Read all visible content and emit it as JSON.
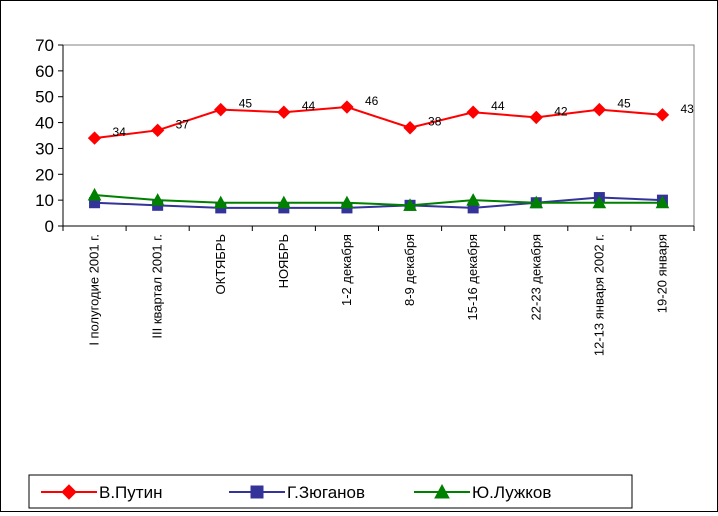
{
  "chart_data": {
    "type": "line",
    "categories": [
      "I полугодие 2001 г.",
      "III квартал 2001 г.",
      "ОКТЯБРЬ",
      "НОЯБРЬ",
      "1-2 декабря",
      "8-9 декабря",
      "15-16 декабря",
      "22-23 декабря",
      "12-13 января 2002 г.",
      "19-20 января"
    ],
    "series": [
      {
        "name": "В.Путин",
        "values": [
          34,
          37,
          45,
          44,
          46,
          38,
          44,
          42,
          45,
          43
        ],
        "color": "#ff0000",
        "marker": "diamond",
        "show_labels": true
      },
      {
        "name": "Г.Зюганов",
        "values": [
          9,
          8,
          7,
          7,
          7,
          8,
          7,
          9,
          11,
          10
        ],
        "color": "#333399",
        "marker": "square",
        "show_labels": false
      },
      {
        "name": "Ю.Лужков",
        "values": [
          12,
          10,
          9,
          9,
          9,
          8,
          10,
          9,
          9,
          9
        ],
        "color": "#008000",
        "marker": "triangle",
        "show_labels": false
      }
    ],
    "y_ticks": [
      "0",
      "10",
      "20",
      "30",
      "40",
      "50",
      "60",
      "70"
    ],
    "ylim": [
      0,
      70
    ],
    "grid": false,
    "legend_position": "bottom-left"
  }
}
